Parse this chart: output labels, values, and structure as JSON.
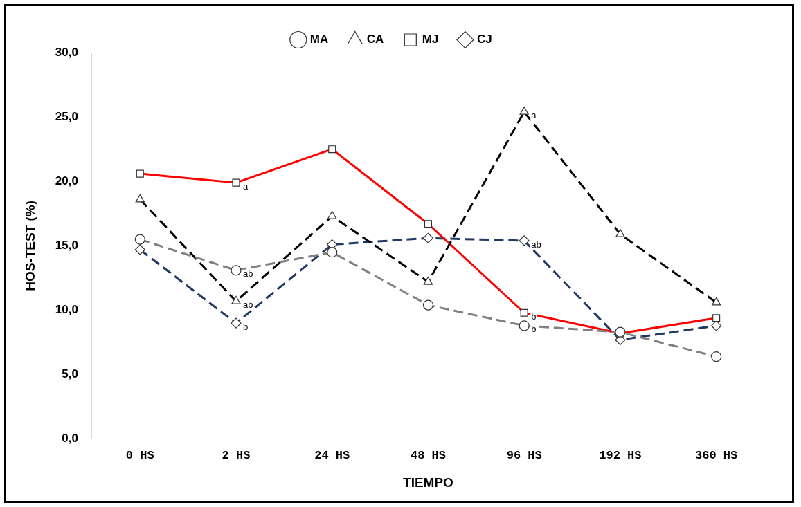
{
  "chart_data": {
    "type": "line",
    "xlabel": "TIEMPO",
    "ylabel": "HOS-TEST (%)",
    "categories": [
      "0 HS",
      "2 HS",
      "24 HS",
      "48 HS",
      "96 HS",
      "192 HS",
      "360 HS"
    ],
    "series": [
      {
        "name": "CJ",
        "color": "#1f3864",
        "marker": "diamond",
        "line_style": "dashed",
        "values": [
          14.7,
          9.0,
          15.1,
          15.6,
          15.4,
          7.7,
          8.8
        ]
      },
      {
        "name": "MJ",
        "color": "#ff0000",
        "marker": "square",
        "line_style": "solid",
        "values": [
          20.6,
          19.9,
          22.5,
          16.7,
          9.8,
          8.2,
          9.4
        ]
      },
      {
        "name": "CA",
        "color": "#000000",
        "marker": "triangle",
        "line_style": "dashed",
        "values": [
          18.6,
          10.7,
          17.3,
          12.2,
          25.4,
          15.9,
          10.6
        ]
      },
      {
        "name": "MA",
        "color": "#808080",
        "marker": "circle",
        "line_style": "dashed",
        "values": [
          15.5,
          13.1,
          14.5,
          10.4,
          8.8,
          8.3,
          6.4
        ]
      }
    ],
    "ylim": [
      0,
      30
    ],
    "yticks": [
      {
        "value": 0,
        "label": "0,0"
      },
      {
        "value": 5,
        "label": "5,0"
      },
      {
        "value": 10,
        "label": "10,0"
      },
      {
        "value": 15,
        "label": "15,0"
      },
      {
        "value": 20,
        "label": "20,0"
      },
      {
        "value": 25,
        "label": "25,0"
      },
      {
        "value": 30,
        "label": "30,0"
      }
    ],
    "grid": false,
    "legend": "top",
    "annotations": [
      {
        "text": "a",
        "x": "2 HS",
        "y": 19.9
      },
      {
        "text": "ab",
        "x": "2 HS",
        "y": 13.1
      },
      {
        "text": "ab",
        "x": "2 HS",
        "y": 10.7
      },
      {
        "text": "b",
        "x": "2 HS",
        "y": 9.0
      },
      {
        "text": "a",
        "x": "96 HS",
        "y": 25.4
      },
      {
        "text": "ab",
        "x": "96 HS",
        "y": 15.4
      },
      {
        "text": "b",
        "x": "96 HS",
        "y": 9.8
      },
      {
        "text": "b",
        "x": "96 HS",
        "y": 8.8
      }
    ]
  }
}
